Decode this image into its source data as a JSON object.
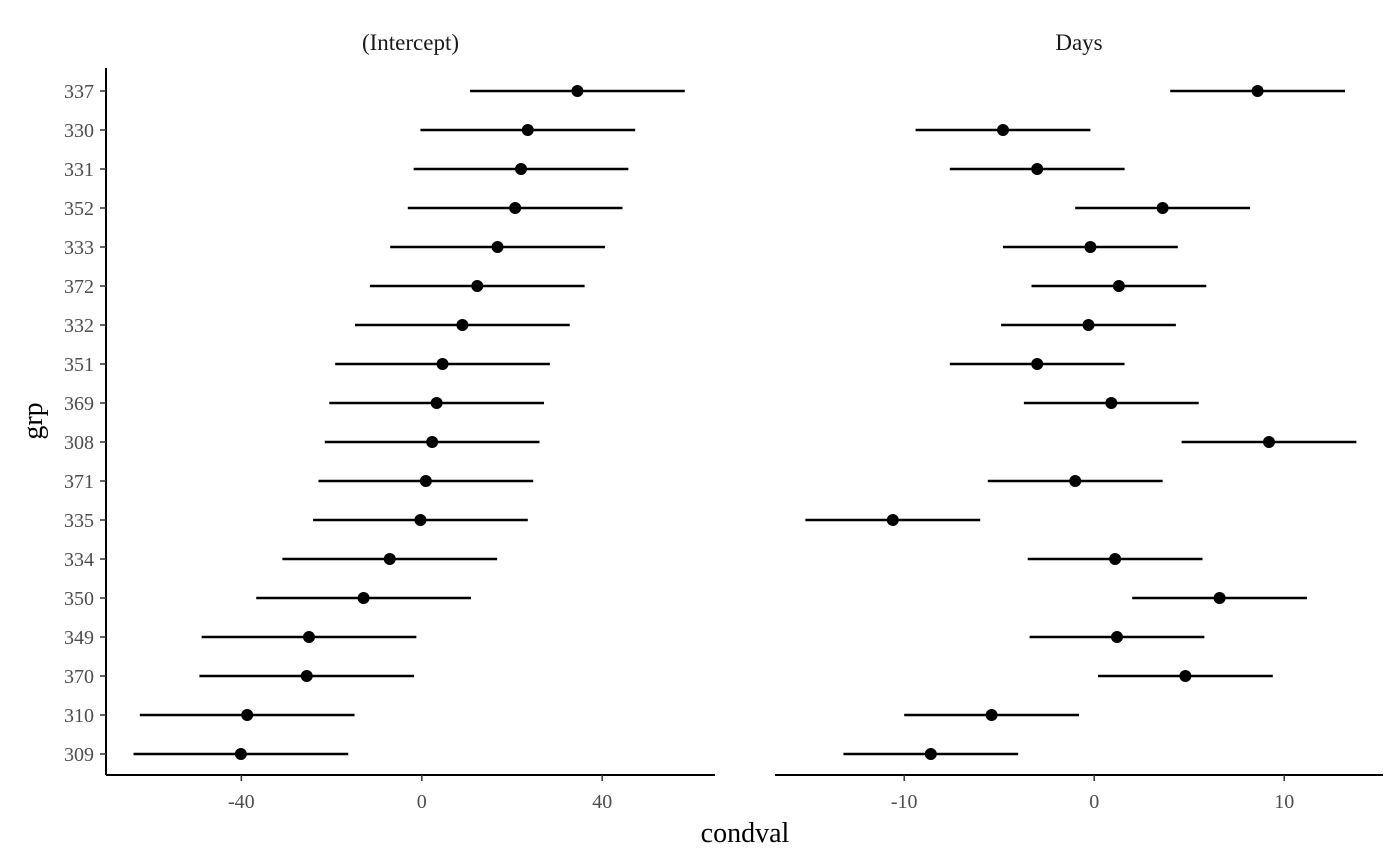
{
  "chart_data": {
    "type": "scatter",
    "xlabel": "condval",
    "ylabel": "grp",
    "categories": [
      "337",
      "330",
      "331",
      "352",
      "333",
      "372",
      "332",
      "351",
      "369",
      "308",
      "371",
      "335",
      "334",
      "350",
      "349",
      "370",
      "310",
      "309"
    ],
    "facets": [
      {
        "title": "(Intercept)",
        "xlim": [
          -70,
          65
        ],
        "xticks": [
          -40,
          0,
          40
        ],
        "xtick_labels": [
          "-40",
          "0",
          "40"
        ],
        "values": [
          34.5,
          23.5,
          22.0,
          20.7,
          16.8,
          12.3,
          9.0,
          4.6,
          3.3,
          2.3,
          0.9,
          -0.3,
          -7.1,
          -12.9,
          -25.0,
          -25.5,
          -38.7,
          -40.1
        ],
        "lower": [
          10.7,
          -0.3,
          -1.8,
          -3.1,
          -7.0,
          -11.5,
          -14.8,
          -19.2,
          -20.5,
          -21.5,
          -22.9,
          -24.1,
          -30.9,
          -36.7,
          -48.8,
          -49.3,
          -62.5,
          -63.9
        ],
        "upper": [
          58.3,
          47.3,
          45.8,
          44.5,
          40.6,
          36.1,
          32.8,
          28.4,
          27.1,
          26.1,
          24.7,
          23.5,
          16.7,
          10.9,
          -1.2,
          -1.7,
          -14.9,
          -16.3
        ]
      },
      {
        "title": "Days",
        "xlim": [
          -16.8,
          15.2
        ],
        "xticks": [
          -10,
          0,
          10
        ],
        "xtick_labels": [
          "-10",
          "0",
          "10"
        ],
        "values": [
          8.6,
          -4.8,
          -3.0,
          3.6,
          -0.2,
          1.3,
          -0.3,
          -3.0,
          0.9,
          9.2,
          -1.0,
          -10.6,
          1.1,
          6.6,
          1.2,
          4.8,
          -5.4,
          -8.6
        ],
        "lower": [
          4.0,
          -9.4,
          -7.6,
          -1.0,
          -4.8,
          -3.3,
          -4.9,
          -7.6,
          -3.7,
          4.6,
          -5.6,
          -15.2,
          -3.5,
          2.0,
          -3.4,
          0.2,
          -10.0,
          -13.2
        ],
        "upper": [
          13.2,
          -0.2,
          1.6,
          8.2,
          4.4,
          5.9,
          4.3,
          1.6,
          5.5,
          13.8,
          3.6,
          -6.0,
          5.7,
          11.2,
          5.8,
          9.4,
          -0.8,
          -4.0
        ]
      }
    ],
    "grid": false,
    "legend": "none",
    "point_color": "#000000"
  }
}
